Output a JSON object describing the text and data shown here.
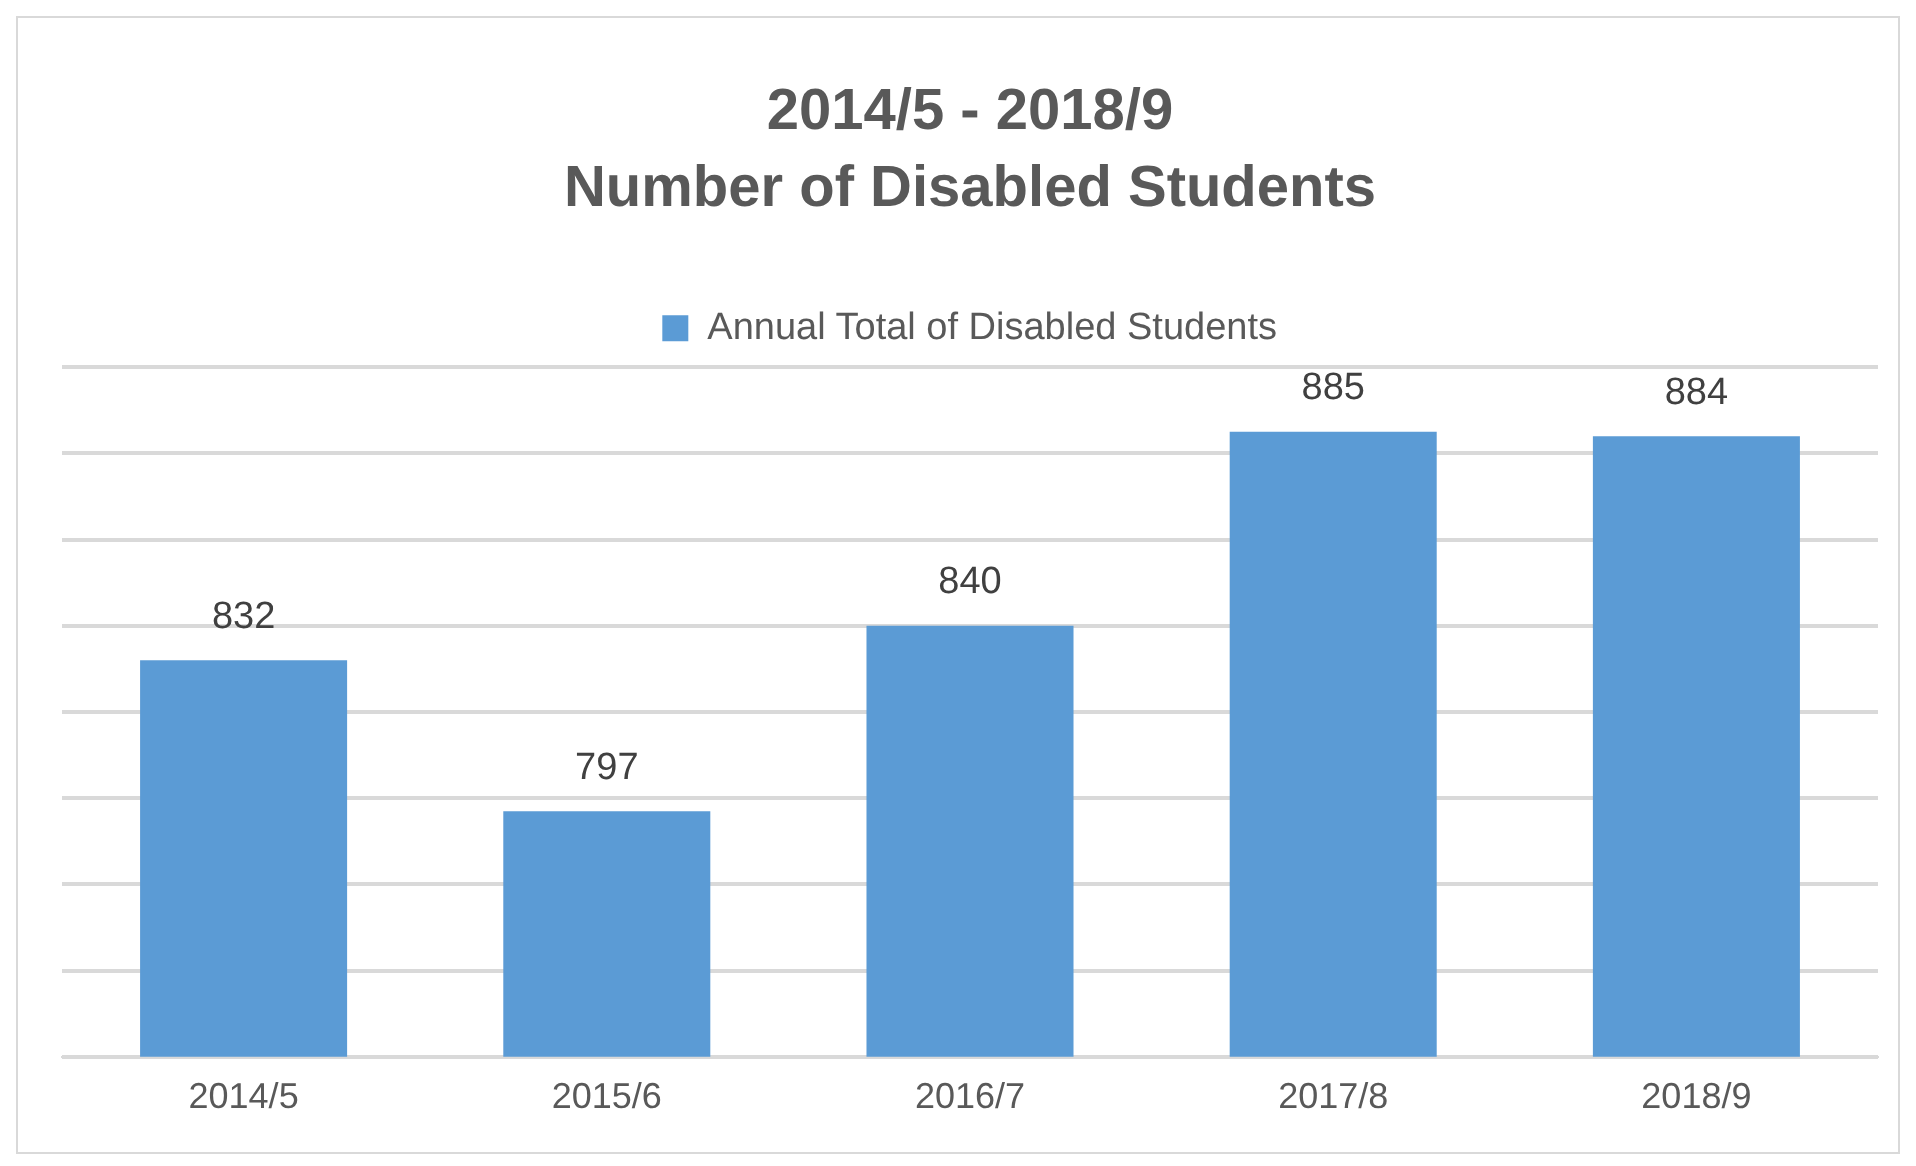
{
  "chart_data": {
    "type": "bar",
    "title": "2014/5 - 2018/9",
    "subtitle": "Number of Disabled Students",
    "categories": [
      "2014/5",
      "2015/6",
      "2016/7",
      "2017/8",
      "2018/9"
    ],
    "series": [
      {
        "name": "Annual Total of Disabled Students",
        "color": "#5b9bd5",
        "values": [
          832,
          797,
          840,
          885,
          884
        ]
      }
    ],
    "ylim": [
      740,
      900
    ],
    "yticks": [
      {
        "value": 740,
        "label": null
      },
      {
        "value": 760,
        "label": null
      },
      {
        "value": 780,
        "label": null
      },
      {
        "value": 800,
        "label": null
      },
      {
        "value": 820,
        "label": null
      },
      {
        "value": 840,
        "label": null
      },
      {
        "value": 860,
        "label": null
      },
      {
        "value": 880,
        "label": null
      },
      {
        "value": 900,
        "label": null
      }
    ],
    "grid": "y",
    "legend": "top",
    "tick_labels": "x",
    "data_labels": true
  }
}
